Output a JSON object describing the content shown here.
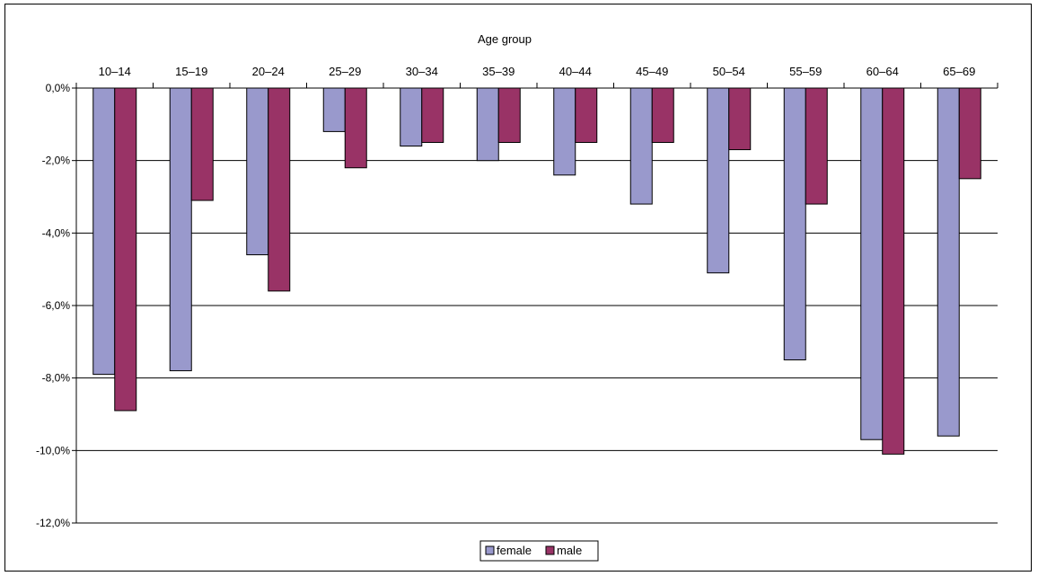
{
  "chart_data": {
    "type": "bar",
    "xlabel": "Age group",
    "ylabel": "",
    "categories": [
      "10–14",
      "15–19",
      "20–24",
      "25–29",
      "30–34",
      "35–39",
      "40–44",
      "45–49",
      "50–54",
      "55–59",
      "60–64",
      "65–69"
    ],
    "series": [
      {
        "name": "female",
        "values": [
          -7.9,
          -7.8,
          -4.6,
          -1.2,
          -1.6,
          -2.0,
          -2.4,
          -3.2,
          -5.1,
          -7.5,
          -9.7,
          -9.6
        ]
      },
      {
        "name": "male",
        "values": [
          -8.9,
          -3.1,
          -5.6,
          -2.2,
          -1.5,
          -1.5,
          -1.5,
          -1.5,
          -1.7,
          -3.2,
          -10.1,
          -2.5
        ]
      }
    ],
    "ylim": [
      -12,
      0
    ],
    "yticks": [
      0,
      -2,
      -4,
      -6,
      -8,
      -10,
      -12
    ],
    "ytick_labels": [
      "0,0%",
      "-2,0%",
      "-4,0%",
      "-6,0%",
      "-8,0%",
      "-10,0%",
      "-12,0%"
    ],
    "grid": true,
    "legend_position": "bottom",
    "colors": {
      "female": "#9999cc",
      "male": "#993366"
    }
  }
}
